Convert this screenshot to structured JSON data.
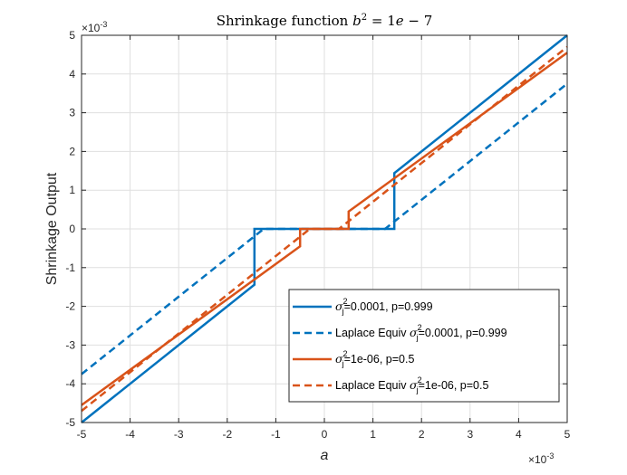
{
  "chart_data": {
    "type": "line",
    "title": {
      "prefix": "Shrinkage function ",
      "var": "b",
      "sup": "2",
      "mid": " = 1",
      "e": "e",
      "suffix": " − 7"
    },
    "xlabel": "a",
    "ylabel": "Shrinkage Output",
    "xlim": [
      -5,
      5
    ],
    "ylim": [
      -5,
      5
    ],
    "x_ticks": [
      -5,
      -4,
      -3,
      -2,
      -1,
      0,
      1,
      2,
      3,
      4,
      5
    ],
    "y_ticks": [
      -5,
      -4,
      -3,
      -2,
      -1,
      0,
      1,
      2,
      3,
      4,
      5
    ],
    "x_tick_labels": [
      "-5",
      "-4",
      "-3",
      "-2",
      "-1",
      "0",
      "1",
      "2",
      "3",
      "4",
      "5"
    ],
    "y_tick_labels": [
      "-5",
      "-4",
      "-3",
      "-2",
      "-1",
      "0",
      "1",
      "2",
      "3",
      "4",
      "5"
    ],
    "x_multiplier": {
      "base": "×10",
      "exp": "-3"
    },
    "y_multiplier": {
      "base": "×10",
      "exp": "-3"
    },
    "grid": true,
    "legend_location": "lower-right",
    "series": [
      {
        "name": "σj²=0.0001, p=0.999",
        "legend": {
          "prefix": "",
          "sigma": "σ",
          "sup": "2",
          "sub": "j",
          "suffix": "=0.0001, p=0.999"
        },
        "color": "#0072BD",
        "style": "solid",
        "x": [
          -5,
          -1.44,
          -1.44,
          1.44,
          1.44,
          5
        ],
        "y": [
          -5,
          -1.44,
          0,
          0,
          1.44,
          5
        ]
      },
      {
        "name": "Laplace Equiv σj²=0.0001, p=0.999",
        "legend": {
          "prefix": "Laplace Equiv ",
          "sigma": "σ",
          "sup": "2",
          "sub": "j",
          "suffix": "=0.0001, p=0.999"
        },
        "color": "#0072BD",
        "style": "dashed",
        "x": [
          -5,
          -1.25,
          1.25,
          5
        ],
        "y": [
          -3.75,
          0,
          0,
          3.75
        ]
      },
      {
        "name": "σj²=1e-06, p=0.5",
        "legend": {
          "prefix": "",
          "sigma": "σ",
          "sup": "2",
          "sub": "j",
          "suffix": "=1e-06, p=0.5"
        },
        "color": "#D95319",
        "style": "solid",
        "x": [
          -5,
          -0.5,
          -0.5,
          0.5,
          0.5,
          5
        ],
        "y": [
          -4.55,
          -0.45,
          0,
          0,
          0.45,
          4.55
        ]
      },
      {
        "name": "Laplace Equiv σj²=1e-06, p=0.5",
        "legend": {
          "prefix": "Laplace Equiv ",
          "sigma": "σ",
          "sup": "2",
          "sub": "j",
          "suffix": "=1e-06, p=0.5"
        },
        "color": "#D95319",
        "style": "dashed",
        "x": [
          -5,
          -0.3,
          0.3,
          5
        ],
        "y": [
          -4.7,
          0,
          0,
          4.7
        ]
      }
    ]
  }
}
